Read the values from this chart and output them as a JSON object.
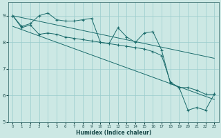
{
  "xlabel": "Humidex (Indice chaleur)",
  "ylabel": "",
  "bg_color": "#cce8e4",
  "grid_color": "#99cccc",
  "line_color": "#1a6b6b",
  "xlim": [
    -0.5,
    23.5
  ],
  "ylim": [
    5,
    9.5
  ],
  "yticks": [
    5,
    6,
    7,
    8,
    9
  ],
  "xticks": [
    0,
    1,
    2,
    3,
    4,
    5,
    6,
    7,
    8,
    9,
    10,
    11,
    12,
    13,
    14,
    15,
    16,
    17,
    18,
    19,
    20,
    21,
    22,
    23
  ],
  "line1_x": [
    0,
    1,
    2,
    3,
    4,
    5,
    6,
    7,
    8,
    9,
    10,
    11,
    12,
    13,
    14,
    15,
    16,
    17,
    18,
    19,
    20,
    21,
    22,
    23
  ],
  "line1_y": [
    9.0,
    8.6,
    8.7,
    9.0,
    9.1,
    8.85,
    8.8,
    8.8,
    8.85,
    8.9,
    8.0,
    7.95,
    8.55,
    8.2,
    8.0,
    8.35,
    8.4,
    7.7,
    6.45,
    6.3,
    5.45,
    5.55,
    5.45,
    6.05
  ],
  "line2_x": [
    0,
    23
  ],
  "line2_y": [
    9.0,
    7.4
  ],
  "line3_x": [
    0,
    23
  ],
  "line3_y": [
    8.6,
    5.85
  ],
  "line4_x": [
    0,
    1,
    2,
    3,
    4,
    5,
    6,
    7,
    8,
    9,
    10,
    11,
    12,
    13,
    14,
    15,
    16,
    17,
    18,
    19,
    20,
    21,
    22,
    23
  ],
  "line4_y": [
    9.0,
    8.55,
    8.65,
    8.3,
    8.35,
    8.3,
    8.2,
    8.15,
    8.1,
    8.05,
    8.0,
    7.95,
    7.9,
    7.85,
    7.8,
    7.75,
    7.65,
    7.5,
    6.5,
    6.3,
    6.3,
    6.2,
    6.05,
    6.05
  ]
}
